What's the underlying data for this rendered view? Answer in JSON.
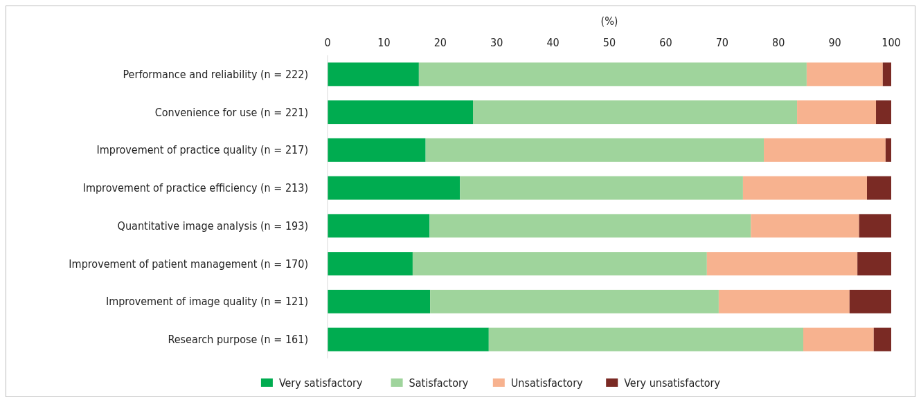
{
  "chart_data": {
    "type": "bar",
    "orientation": "horizontal",
    "stacked": true,
    "xlabel": "(%)",
    "xlim": [
      0,
      100
    ],
    "xticks": [
      0,
      10,
      20,
      30,
      40,
      50,
      60,
      70,
      80,
      90,
      100
    ],
    "legend": "bottom",
    "categories": [
      "Performance and reliability (n = 222)",
      "Convenience for use (n = 221)",
      "Improvement of practice quality (n = 217)",
      "Improvement of practice efficiency (n = 213)",
      "Quantitative image analysis (n = 193)",
      "Improvement of patient management (n = 170)",
      "Improvement of image quality (n = 121)",
      "Research purpose (n = 161)"
    ],
    "series": [
      {
        "name": "Very satisfactory",
        "color": "#00ac50",
        "values": [
          16.2,
          25.8,
          17.4,
          23.5,
          18.1,
          15.1,
          18.2,
          28.6
        ]
      },
      {
        "name": "Satisfactory",
        "color": "#9fd49c",
        "values": [
          68.8,
          57.5,
          60.0,
          50.2,
          57.0,
          52.2,
          51.2,
          55.8
        ]
      },
      {
        "name": "Unsatisfactory",
        "color": "#f7b28f",
        "values": [
          13.5,
          14.0,
          21.6,
          22.0,
          19.2,
          26.7,
          23.2,
          12.5
        ]
      },
      {
        "name": "Very unsatisfactory",
        "color": "#7a2a24",
        "values": [
          1.5,
          2.7,
          1.0,
          4.3,
          5.7,
          6.0,
          7.4,
          3.1
        ]
      }
    ]
  }
}
